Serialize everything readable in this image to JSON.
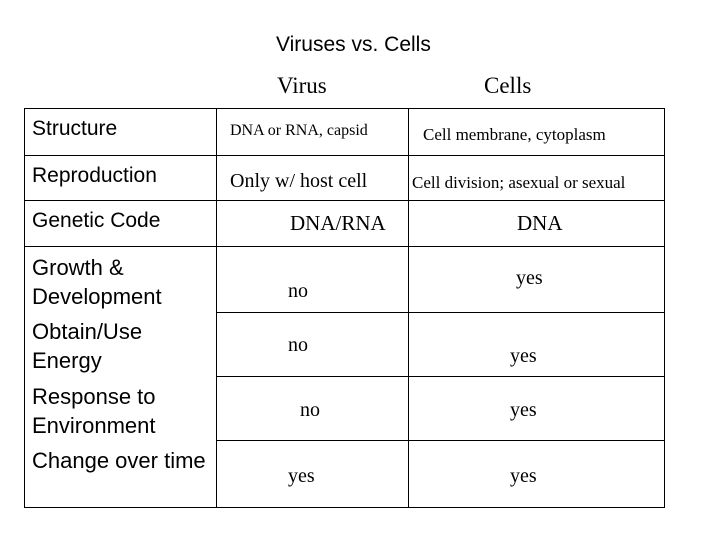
{
  "title": "Viruses vs. Cells",
  "columns": {
    "virus": "Virus",
    "cells": "Cells"
  },
  "rows": [
    {
      "label": "Structure",
      "virus": "DNA or RNA, capsid",
      "cells": "Cell membrane, cytoplasm"
    },
    {
      "label": "Reproduction",
      "virus": "Only w/ host cell",
      "cells": "Cell division; asexual or sexual"
    },
    {
      "label": "Genetic Code",
      "virus": "DNA/RNA",
      "cells": "DNA"
    },
    {
      "label": "Growth & Development",
      "virus": "no",
      "cells": "yes"
    },
    {
      "label": "Obtain/Use Energy",
      "virus": "no",
      "cells": "yes"
    },
    {
      "label": "Response to Environment",
      "virus": "no",
      "cells": "yes"
    },
    {
      "label": "Change over time",
      "virus": "yes",
      "cells": "yes"
    }
  ]
}
